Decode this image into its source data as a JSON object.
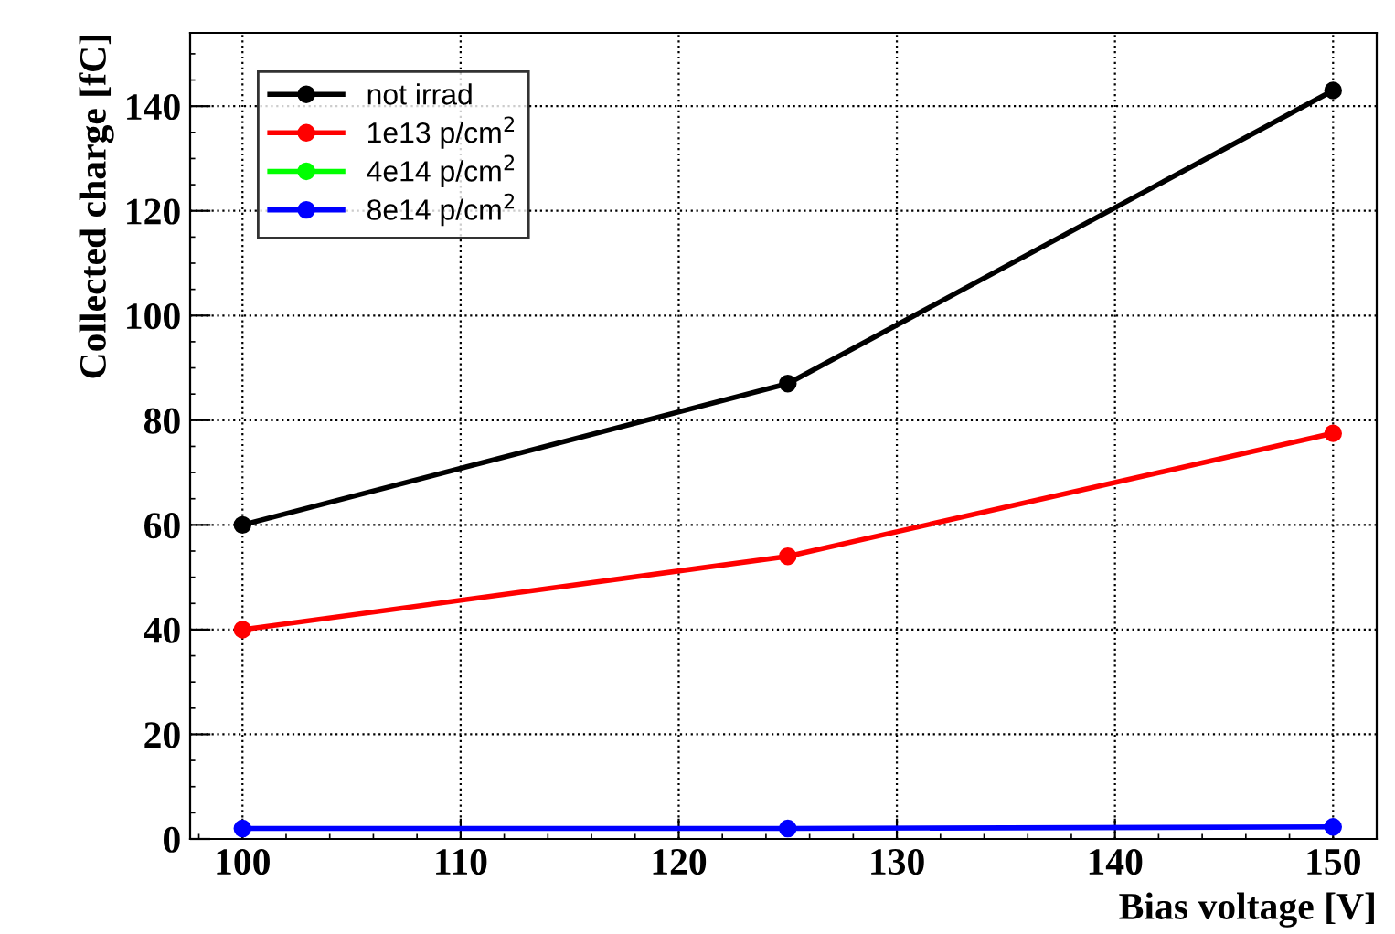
{
  "chart_data": {
    "type": "line",
    "xlabel": "Bias voltage [V]",
    "ylabel": "Collected charge [fC]",
    "x": [
      100,
      125,
      150
    ],
    "series": [
      {
        "name": "not irrad",
        "color": "#000000",
        "values": [
          60,
          87,
          143
        ]
      },
      {
        "name": "1e13 p/cm$^{2}$",
        "color": "#ff0000",
        "values": [
          40,
          54,
          77.5
        ]
      },
      {
        "name": "4e14 p/cm$^{2}$",
        "color": "#00ff00",
        "values": [
          null,
          null,
          null
        ]
      },
      {
        "name": "8e14 p/cm$^{2}$",
        "color": "#0000ff",
        "values": [
          2,
          2,
          2.3
        ]
      }
    ],
    "xlim": [
      97.6,
      152
    ],
    "ylim": [
      0,
      154
    ],
    "xticks": [
      100,
      110,
      120,
      130,
      140,
      150
    ],
    "yticks": [
      0,
      20,
      40,
      60,
      80,
      100,
      120,
      140
    ],
    "grid": true,
    "legend": "top left",
    "marker": "circle",
    "line_style": "solid"
  }
}
